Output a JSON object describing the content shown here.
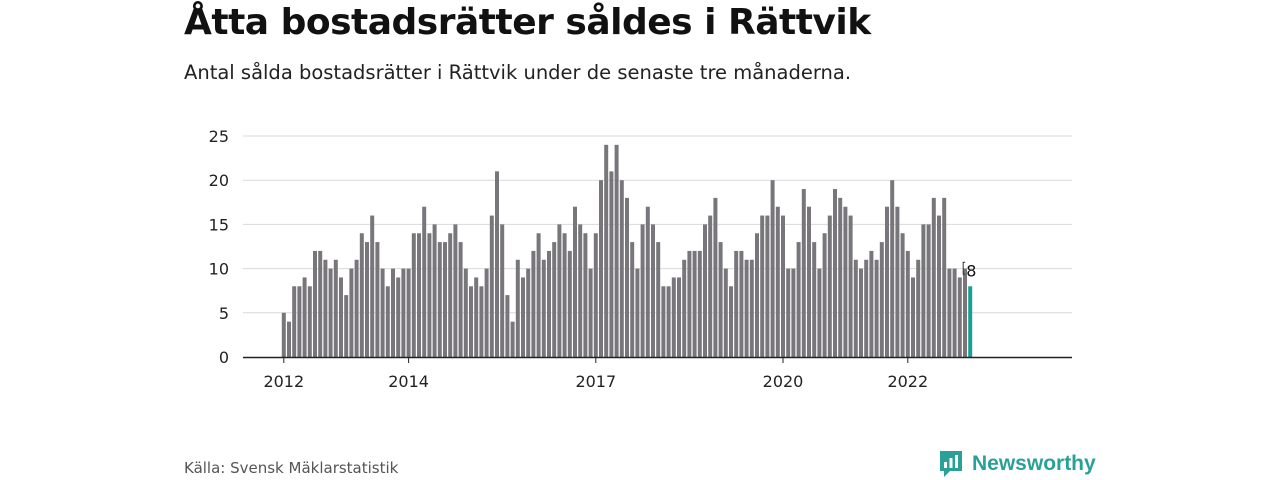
{
  "title": "Åtta bostadsrätter såldes i Rättvik",
  "subtitle": "Antal sålda bostadsrätter i Rättvik under de senaste tre månaderna.",
  "source": "Källa: Svensk Mäklarstatistik",
  "logo": {
    "text": "Newsworthy",
    "icon": "newsworthy-logo-icon"
  },
  "colors": {
    "bar": "#78767b",
    "highlight": "#1a9e96",
    "grid": "#d9d9d9",
    "axis": "#222222",
    "logo": "#2aa198"
  },
  "chart_data": {
    "type": "bar",
    "x_start": "2012-01",
    "x_tick_labels": [
      {
        "label": "2012",
        "month": "2012-01"
      },
      {
        "label": "2014",
        "month": "2014-01"
      },
      {
        "label": "2017",
        "month": "2017-01"
      },
      {
        "label": "2020",
        "month": "2020-01"
      },
      {
        "label": "2022",
        "month": "2022-01"
      }
    ],
    "ylim": [
      0,
      25
    ],
    "y_ticks": [
      0,
      5,
      10,
      15,
      20,
      25
    ],
    "grid": true,
    "values": [
      5,
      4,
      8,
      8,
      9,
      8,
      12,
      12,
      11,
      10,
      11,
      9,
      7,
      10,
      11,
      14,
      13,
      16,
      13,
      10,
      8,
      10,
      9,
      10,
      10,
      14,
      14,
      17,
      14,
      15,
      13,
      13,
      14,
      15,
      13,
      10,
      8,
      9,
      8,
      10,
      16,
      21,
      15,
      7,
      4,
      11,
      9,
      10,
      12,
      14,
      11,
      12,
      13,
      15,
      14,
      12,
      17,
      15,
      14,
      10,
      14,
      20,
      24,
      21,
      24,
      20,
      18,
      13,
      10,
      15,
      17,
      15,
      13,
      8,
      8,
      9,
      9,
      11,
      12,
      12,
      12,
      15,
      16,
      18,
      13,
      10,
      8,
      12,
      12,
      11,
      11,
      14,
      16,
      16,
      20,
      17,
      16,
      10,
      10,
      13,
      19,
      17,
      13,
      10,
      14,
      16,
      19,
      18,
      17,
      16,
      11,
      10,
      11,
      12,
      11,
      13,
      17,
      20,
      17,
      14,
      12,
      9,
      11,
      15,
      15,
      18,
      16,
      18,
      10,
      10,
      9,
      10,
      8
    ],
    "highlight_last": true,
    "last_value_label": "8"
  }
}
